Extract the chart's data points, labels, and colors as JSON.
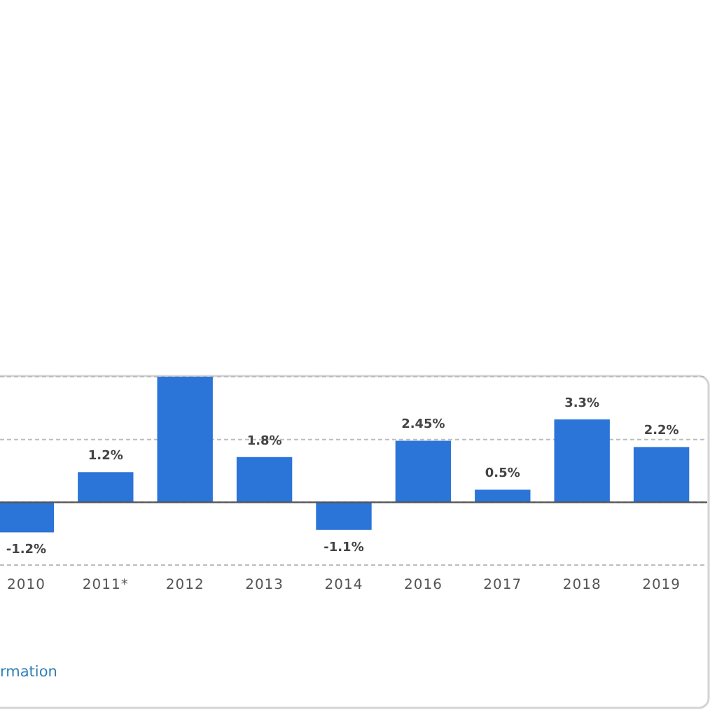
{
  "chart_data": {
    "type": "bar",
    "categories": [
      "2010",
      "2011*",
      "2012",
      "2013",
      "2014",
      "2016",
      "2017",
      "2018",
      "2019"
    ],
    "values": [
      -1.2,
      1.2,
      5.0,
      1.8,
      -1.1,
      2.45,
      0.5,
      3.3,
      2.2
    ],
    "value_labels": [
      "-1.2%",
      "1.2%",
      null,
      "1.8%",
      "-1.1%",
      "2.45%",
      "0.5%",
      "3.3%",
      "2.2%"
    ],
    "color": "#2b74d8",
    "ylim": [
      -2.5,
      5
    ],
    "yticks": [
      {
        "value": -2.5,
        "label": null
      },
      {
        "value": 0,
        "label": null
      },
      {
        "value": 2.5,
        "label": null
      },
      {
        "value": 5,
        "label": null
      }
    ],
    "grid": "y",
    "tick_labels": "x",
    "annotations": [
      "rmation"
    ]
  }
}
